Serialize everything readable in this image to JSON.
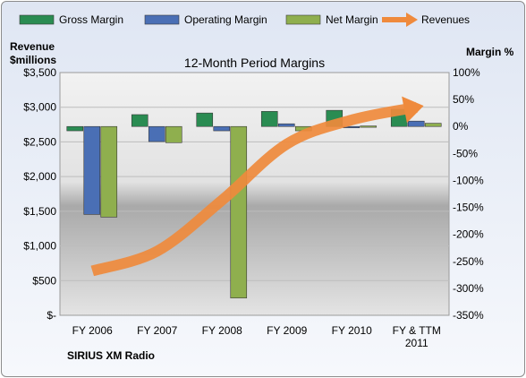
{
  "chart_data": {
    "type": "bar",
    "title": "12-Month Period Margins",
    "company": "SIRIUS XM Radio",
    "left_axis_title": "Revenue\n$millions",
    "right_axis_title": "Margin %",
    "categories": [
      "FY 2006",
      "FY 2007",
      "FY 2008",
      "FY 2009",
      "FY 2010",
      "FY & TTM\n2011"
    ],
    "left_axis": {
      "min": 0,
      "max": 3500,
      "step": 500,
      "tick_labels": [
        "$-",
        "$500",
        "$1,000",
        "$1,500",
        "$2,000",
        "$2,500",
        "$3,000",
        "$3,500"
      ]
    },
    "right_axis": {
      "min": -350,
      "max": 100,
      "step": 50,
      "tick_labels": [
        "-350%",
        "-300%",
        "-250%",
        "-200%",
        "-150%",
        "-100%",
        "-50%",
        "0%",
        "50%",
        "100%"
      ]
    },
    "series": [
      {
        "name": "Gross Margin",
        "axis": "right",
        "kind": "bar",
        "color": "#2a8c52",
        "values": [
          -8,
          22,
          25,
          28,
          30,
          32
        ]
      },
      {
        "name": "Operating Margin",
        "axis": "right",
        "kind": "bar",
        "color": "#4a6fb5",
        "values": [
          -163,
          -28,
          -8,
          5,
          0,
          10
        ]
      },
      {
        "name": "Net Margin",
        "axis": "right",
        "kind": "bar",
        "color": "#8faf4e",
        "values": [
          -168,
          -30,
          -318,
          -8,
          1,
          6
        ]
      },
      {
        "name": "Revenues",
        "axis": "left",
        "kind": "line",
        "color": "#ef8a3c",
        "values": [
          640,
          925,
          1660,
          2470,
          2817,
          3000
        ]
      }
    ],
    "legend_position": "top",
    "grid": true
  }
}
